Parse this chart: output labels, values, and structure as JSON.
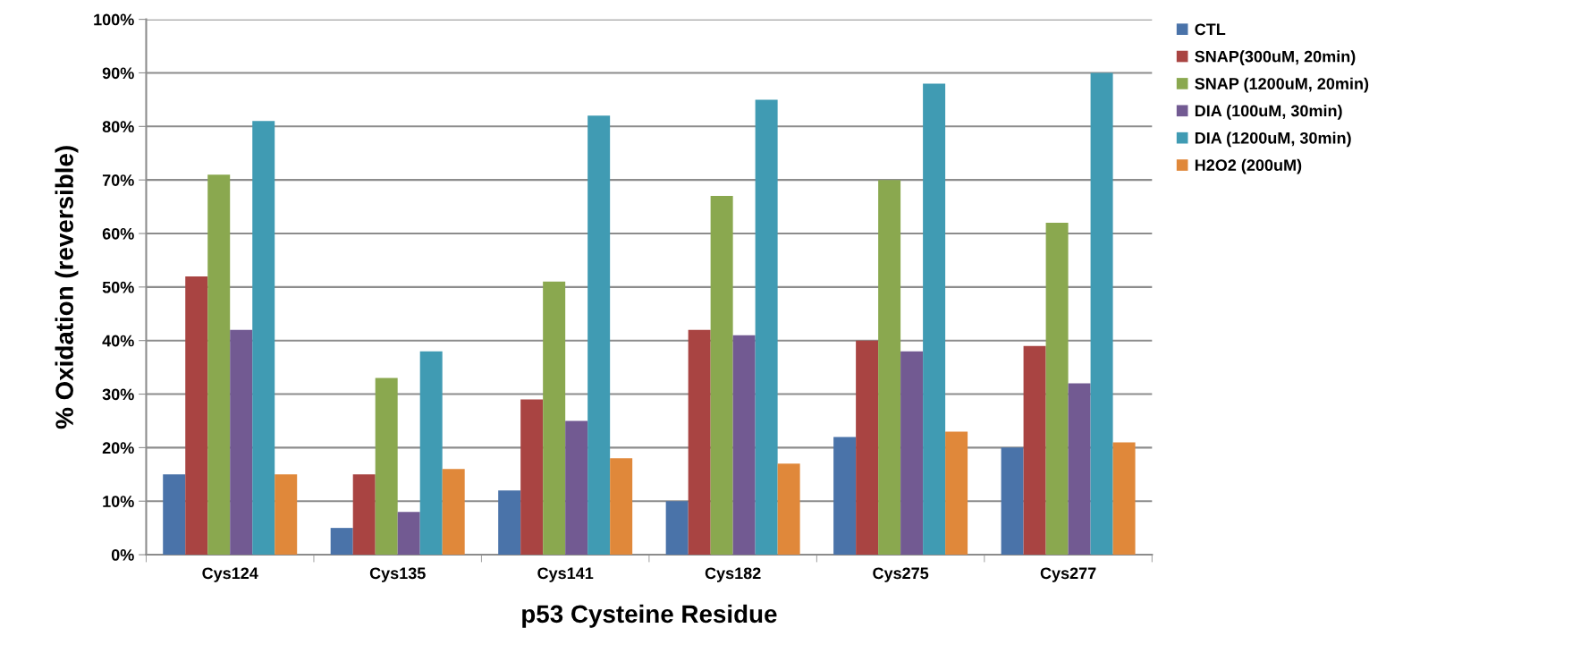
{
  "chart_data": {
    "type": "bar",
    "xlabel": "p53 Cysteine Residue",
    "ylabel": "% Oxidation (reversible)",
    "categories": [
      "Cys124",
      "Cys135",
      "Cys141",
      "Cys182",
      "Cys275",
      "Cys277"
    ],
    "series": [
      {
        "name": "CTL",
        "color": "#4a73a9",
        "values": [
          15,
          5,
          12,
          10,
          22,
          20
        ]
      },
      {
        "name": "SNAP(300uM, 20min)",
        "color": "#a94442",
        "values": [
          52,
          15,
          29,
          42,
          40,
          39
        ]
      },
      {
        "name": "SNAP (1200uM, 20min)",
        "color": "#8aa84f",
        "values": [
          71,
          33,
          51,
          67,
          70,
          62
        ]
      },
      {
        "name": "DIA (100uM, 30min)",
        "color": "#725a92",
        "values": [
          42,
          8,
          25,
          41,
          38,
          32
        ]
      },
      {
        "name": "DIA (1200uM, 30min)",
        "color": "#409bb3",
        "values": [
          81,
          38,
          82,
          85,
          88,
          90
        ]
      },
      {
        "name": "H2O2 (200uM)",
        "color": "#e0883a",
        "values": [
          15,
          16,
          18,
          17,
          23,
          21
        ]
      }
    ],
    "ylim": [
      0,
      100
    ],
    "yticks": [
      {
        "value": 0,
        "label": "0%"
      },
      {
        "value": 10,
        "label": "10%"
      },
      {
        "value": 20,
        "label": "20%"
      },
      {
        "value": 30,
        "label": "30%"
      },
      {
        "value": 40,
        "label": "40%"
      },
      {
        "value": 50,
        "label": "50%"
      },
      {
        "value": 60,
        "label": "60%"
      },
      {
        "value": 70,
        "label": "70%"
      },
      {
        "value": 80,
        "label": "80%"
      },
      {
        "value": 90,
        "label": "90%"
      },
      {
        "value": 100,
        "label": "100%"
      }
    ],
    "grid": "y",
    "legend": "right"
  }
}
